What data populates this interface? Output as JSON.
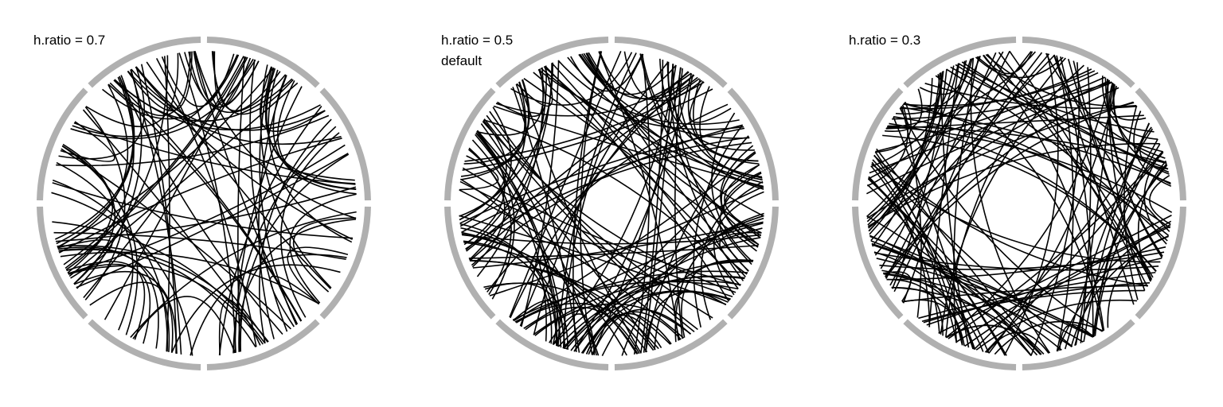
{
  "figure": {
    "panels": [
      {
        "label": "h.ratio = 0.7",
        "sublabel": "",
        "h_ratio": 0.7,
        "links": 100
      },
      {
        "label": "h.ratio = 0.5",
        "sublabel": "default",
        "h_ratio": 0.5,
        "links": 150
      },
      {
        "label": "h.ratio = 0.3",
        "sublabel": "",
        "h_ratio": 0.3,
        "links": 150
      }
    ],
    "sectors": 8,
    "colors": {
      "track": "#b0b0b0",
      "link": "#000000",
      "background": "#ffffff"
    }
  }
}
